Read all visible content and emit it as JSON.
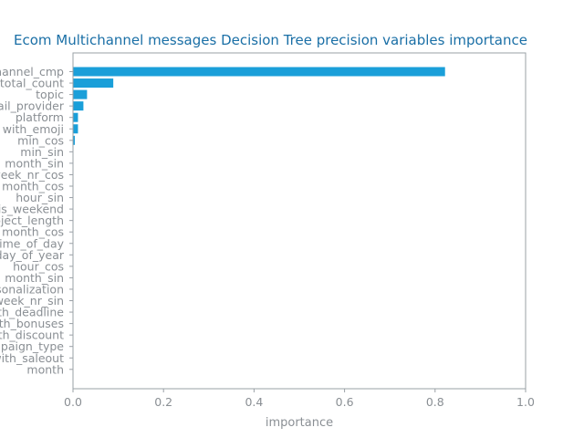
{
  "chart_data": {
    "type": "bar",
    "orientation": "horizontal",
    "title": "Ecom Multichannel messages Decision Tree precision variables importance",
    "xlabel": "importance",
    "ylabel": "",
    "xlim": [
      0,
      1.0
    ],
    "x_ticks": [
      "0.0",
      "0.2",
      "0.4",
      "0.6",
      "0.8",
      "1.0"
    ],
    "bar_color": "#1a9fd9",
    "grid": false,
    "categories": [
      "channel_cmp",
      "total_count",
      "topic",
      "mail_provider",
      "platform",
      "with_emoji",
      "min_cos",
      "min_sin",
      "month_sin",
      "week_nr_cos",
      "month_cos",
      "hour_sin",
      "is_weekend",
      "subject_length",
      "month_cos",
      "time_of_day",
      "day_of_year",
      "hour_cos",
      "month_sin",
      "personalization",
      "week_nr_sin",
      "with_deadline",
      "with_bonuses",
      "with_discount",
      "campaign_type",
      "with_saleout",
      "month"
    ],
    "values": [
      0.822,
      0.089,
      0.031,
      0.023,
      0.011,
      0.011,
      0.004,
      0.0,
      0.0,
      0.0,
      0.0,
      0.0,
      0.0,
      0.0,
      0.0,
      0.0,
      0.0,
      0.0,
      0.0,
      0.0,
      0.0,
      0.0,
      0.0,
      0.0,
      0.0,
      0.0,
      0.0
    ]
  }
}
